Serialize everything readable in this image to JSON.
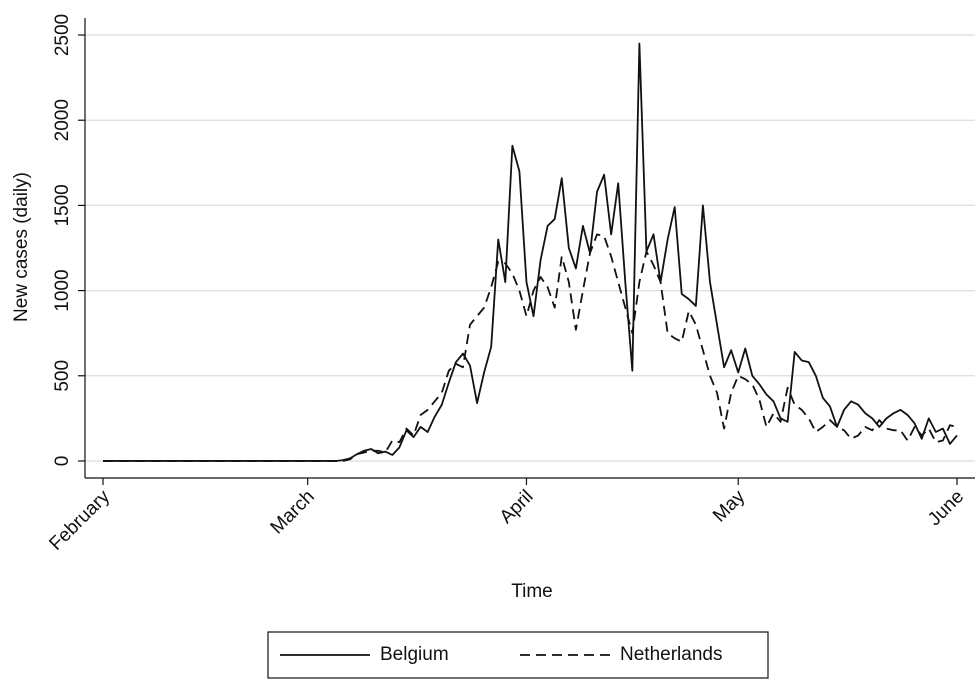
{
  "chart_data": {
    "type": "line",
    "x_label": "Time",
    "y_label": "New cases (daily)",
    "categories": [
      "February",
      null,
      null,
      null,
      null,
      null,
      null,
      null,
      null,
      null,
      null,
      null,
      null,
      null,
      null,
      null,
      null,
      null,
      null,
      null,
      null,
      null,
      null,
      null,
      null,
      null,
      null,
      null,
      null,
      "March",
      null,
      null,
      null,
      null,
      null,
      null,
      null,
      null,
      null,
      null,
      null,
      null,
      null,
      null,
      null,
      null,
      null,
      null,
      null,
      null,
      null,
      null,
      null,
      null,
      null,
      null,
      null,
      null,
      null,
      null,
      "April",
      null,
      null,
      null,
      null,
      null,
      null,
      null,
      null,
      null,
      null,
      null,
      null,
      null,
      null,
      null,
      null,
      null,
      null,
      null,
      null,
      null,
      null,
      null,
      null,
      null,
      null,
      null,
      null,
      null,
      "May",
      null,
      null,
      null,
      null,
      null,
      null,
      null,
      null,
      null,
      null,
      null,
      null,
      null,
      null,
      null,
      null,
      null,
      null,
      null,
      null,
      null,
      null,
      null,
      null,
      null,
      null,
      null,
      null,
      null,
      null,
      "June"
    ],
    "series": [
      {
        "name": "Belgium",
        "color": "#111111",
        "dashed": false,
        "values": [
          0,
          0,
          0,
          0,
          0,
          0,
          0,
          0,
          0,
          0,
          0,
          0,
          0,
          0,
          0,
          0,
          0,
          0,
          0,
          0,
          0,
          0,
          0,
          0,
          0,
          0,
          0,
          0,
          0,
          0,
          0,
          0,
          0,
          0,
          5,
          15,
          40,
          60,
          70,
          45,
          55,
          35,
          80,
          180,
          140,
          200,
          170,
          260,
          330,
          460,
          580,
          630,
          560,
          340,
          520,
          670,
          1300,
          1050,
          1850,
          1700,
          1050,
          850,
          1180,
          1380,
          1420,
          1660,
          1250,
          1130,
          1380,
          1220,
          1580,
          1680,
          1330,
          1630,
          1050,
          530,
          2450,
          1230,
          1330,
          1050,
          1300,
          1490,
          980,
          950,
          910,
          1500,
          1050,
          800,
          550,
          650,
          520,
          660,
          500,
          450,
          390,
          350,
          250,
          230,
          640,
          590,
          580,
          500,
          370,
          320,
          200,
          300,
          350,
          330,
          280,
          250,
          200,
          250,
          280,
          300,
          270,
          220,
          130,
          250,
          170,
          190,
          100,
          150
        ]
      },
      {
        "name": "Netherlands",
        "color": "#111111",
        "dashed": true,
        "values": [
          0,
          0,
          0,
          0,
          0,
          0,
          0,
          0,
          0,
          0,
          0,
          0,
          0,
          0,
          0,
          0,
          0,
          0,
          0,
          0,
          0,
          0,
          0,
          0,
          0,
          0,
          0,
          0,
          0,
          0,
          0,
          0,
          0,
          0,
          0,
          10,
          40,
          50,
          60,
          60,
          50,
          120,
          110,
          190,
          150,
          270,
          300,
          350,
          400,
          530,
          570,
          550,
          800,
          850,
          900,
          1020,
          1170,
          1160,
          1100,
          1000,
          850,
          1000,
          1080,
          1020,
          900,
          1200,
          1050,
          770,
          1000,
          1220,
          1330,
          1320,
          1200,
          1050,
          900,
          750,
          1050,
          1230,
          1150,
          1050,
          750,
          720,
          700,
          880,
          800,
          650,
          500,
          400,
          190,
          400,
          500,
          480,
          450,
          360,
          200,
          280,
          230,
          430,
          330,
          300,
          250,
          170,
          200,
          240,
          200,
          180,
          130,
          150,
          200,
          180,
          240,
          190,
          180,
          180,
          120,
          200,
          150,
          190,
          110,
          120,
          210,
          200
        ]
      }
    ],
    "ylim": [
      -100,
      2600
    ],
    "yticks": [
      0,
      500,
      1000,
      1500,
      2000,
      2500
    ],
    "grid": true,
    "legend": "bottom"
  }
}
